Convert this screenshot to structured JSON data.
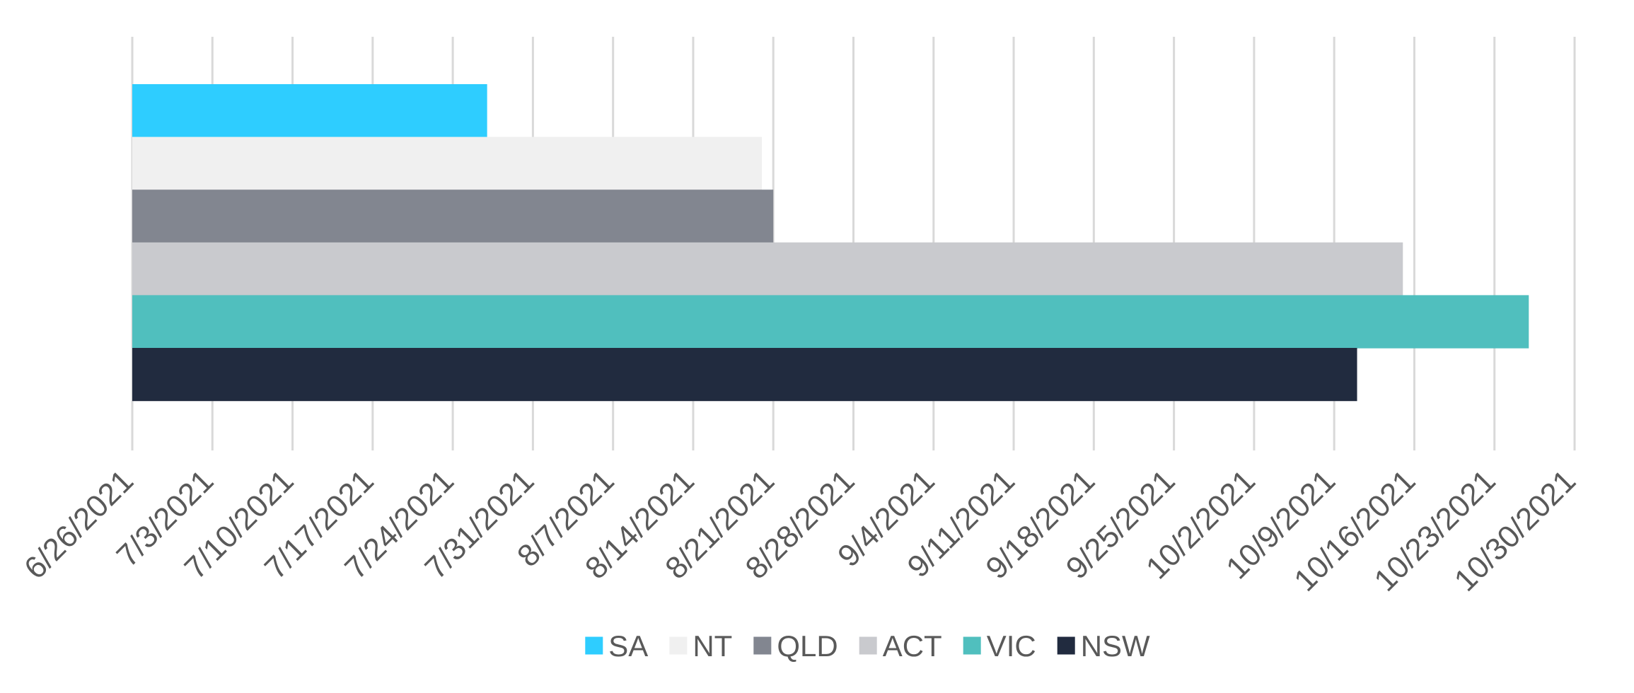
{
  "chart_data": {
    "type": "bar",
    "orientation": "horizontal",
    "x_axis": {
      "type": "date",
      "min": "2021-06-26",
      "max": "2021-10-30",
      "tick_step_days": 7,
      "tick_labels": [
        "6/26/2021",
        "7/3/2021",
        "7/10/2021",
        "7/17/2021",
        "7/24/2021",
        "7/31/2021",
        "8/7/2021",
        "8/14/2021",
        "8/21/2021",
        "8/28/2021",
        "9/4/2021",
        "9/11/2021",
        "9/18/2021",
        "9/25/2021",
        "10/2/2021",
        "10/9/2021",
        "10/16/2021",
        "10/23/2021",
        "10/30/2021"
      ]
    },
    "grid": "vertical",
    "legend_position": "bottom",
    "series": [
      {
        "name": "SA",
        "end": "2021-07-27",
        "color": "#2ecdff"
      },
      {
        "name": "NT",
        "end": "2021-08-20",
        "color": "#f0f0f0"
      },
      {
        "name": "QLD",
        "end": "2021-08-21",
        "color": "#828690"
      },
      {
        "name": "ACT",
        "end": "2021-10-15",
        "color": "#c9cace"
      },
      {
        "name": "VIC",
        "end": "2021-10-26",
        "color": "#50bfbe"
      },
      {
        "name": "NSW",
        "end": "2021-10-11",
        "color": "#212b3f"
      }
    ],
    "start": "2021-06-26"
  }
}
